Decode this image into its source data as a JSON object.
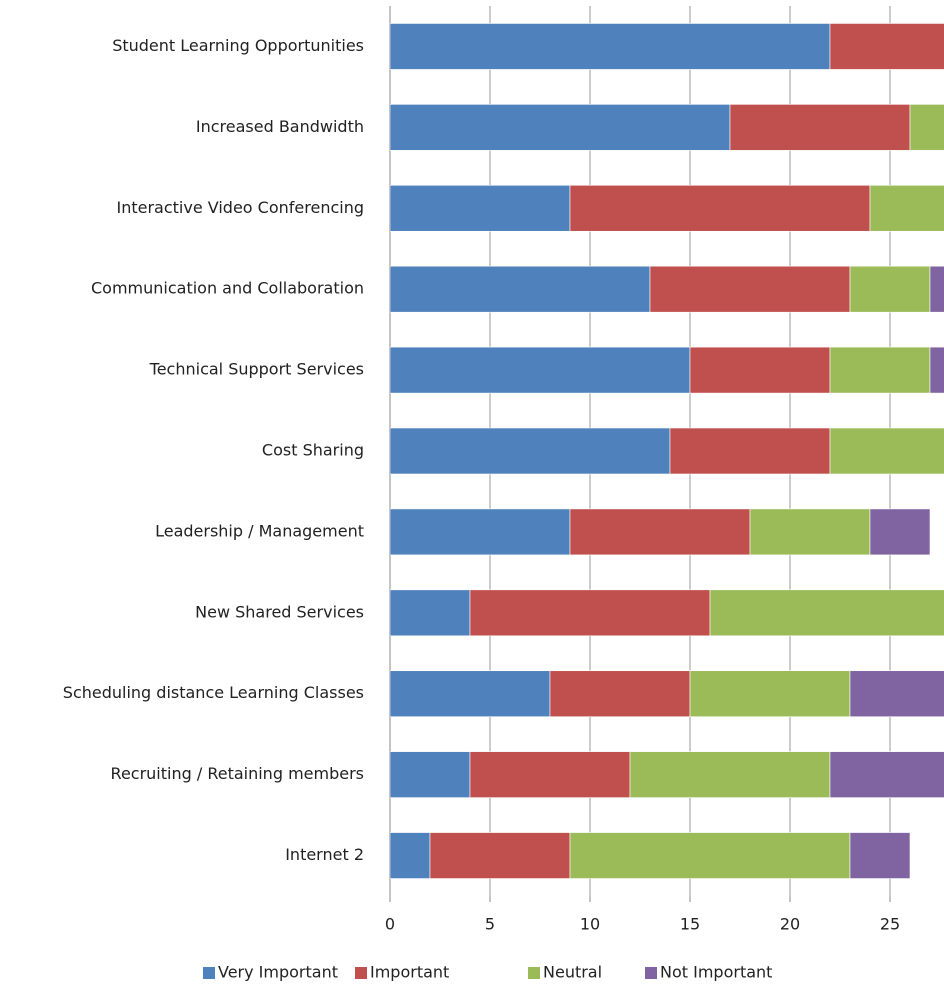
{
  "chart_data": {
    "type": "stacked-bar-horizontal",
    "categories": [
      "Student Learning Opportunities",
      "Increased Bandwidth",
      "Interactive Video Conferencing",
      "Communication and Collaboration",
      "Technical Support Services",
      "Cost Sharing",
      "Leadership / Management",
      "New Shared Services",
      "Scheduling distance Learning Classes",
      "Recruiting / Retaining members",
      "Internet 2"
    ],
    "series": [
      {
        "name": "Very Important",
        "color": "#4f81bd",
        "values": [
          22,
          17,
          9,
          13,
          15,
          14,
          9,
          4,
          8,
          4,
          2
        ]
      },
      {
        "name": "Important",
        "color": "#c0504d",
        "values": [
          6,
          9,
          15,
          10,
          7,
          8,
          9,
          12,
          7,
          8,
          7
        ]
      },
      {
        "name": "Neutral",
        "color": "#9bbb59",
        "values": [
          0,
          2,
          4,
          4,
          5,
          6,
          6,
          12,
          8,
          10,
          14
        ]
      },
      {
        "name": "Not Important",
        "color": "#8064a2",
        "values": [
          0,
          0,
          0,
          1,
          1,
          0,
          3,
          0,
          5,
          6,
          3
        ]
      }
    ],
    "xlim": [
      0,
      27.7
    ],
    "xticks": [
      0,
      5,
      10,
      15,
      20,
      25
    ],
    "grid": true,
    "legend": "bottom"
  }
}
